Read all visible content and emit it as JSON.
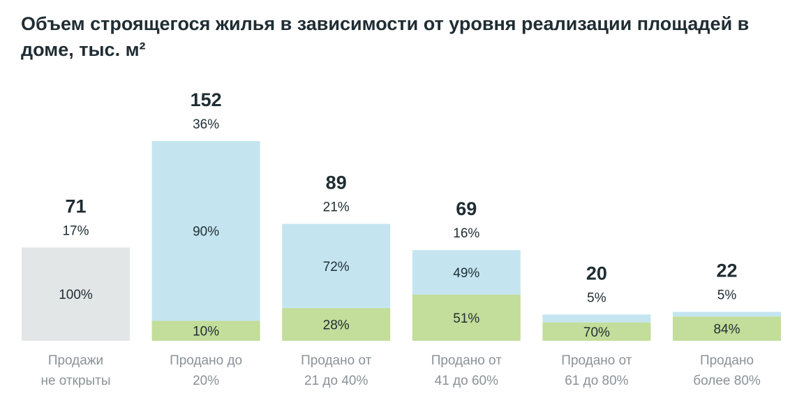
{
  "chart_data": {
    "type": "bar",
    "title": "Объем строящегося жилья в зависимости от уровня реализации площадей в доме, тыс. м²",
    "categories": [
      [
        "Продажи",
        "не открыты"
      ],
      [
        "Продано до",
        "20%"
      ],
      [
        "Продано от",
        "21 до 40%"
      ],
      [
        "Продано от",
        "41 до 60%"
      ],
      [
        "Продано от",
        "61 до 80%"
      ],
      [
        "Продано",
        "более 80%"
      ]
    ],
    "totals": [
      71,
      152,
      89,
      69,
      20,
      22
    ],
    "total_shares": [
      "17%",
      "36%",
      "21%",
      "16%",
      "5%",
      "5%"
    ],
    "segments": [
      [
        {
          "share": 100,
          "label": "100%",
          "color": "#e3e6e7"
        }
      ],
      [
        {
          "share": 10,
          "label": "10%",
          "color": "#c3dd9a"
        },
        {
          "share": 90,
          "label": "90%",
          "color": "#c4e5f0"
        }
      ],
      [
        {
          "share": 28,
          "label": "28%",
          "color": "#c3dd9a"
        },
        {
          "share": 72,
          "label": "72%",
          "color": "#c4e5f0"
        }
      ],
      [
        {
          "share": 51,
          "label": "51%",
          "color": "#c3dd9a"
        },
        {
          "share": 49,
          "label": "49%",
          "color": "#c4e5f0"
        }
      ],
      [
        {
          "share": 70,
          "label": "70%",
          "color": "#c3dd9a"
        },
        {
          "share": 30,
          "label": "",
          "color": "#c4e5f0"
        }
      ],
      [
        {
          "share": 84,
          "label": "84%",
          "color": "#c3dd9a"
        },
        {
          "share": 16,
          "label": "",
          "color": "#c4e5f0"
        }
      ]
    ],
    "ylim": [
      0,
      152
    ]
  }
}
